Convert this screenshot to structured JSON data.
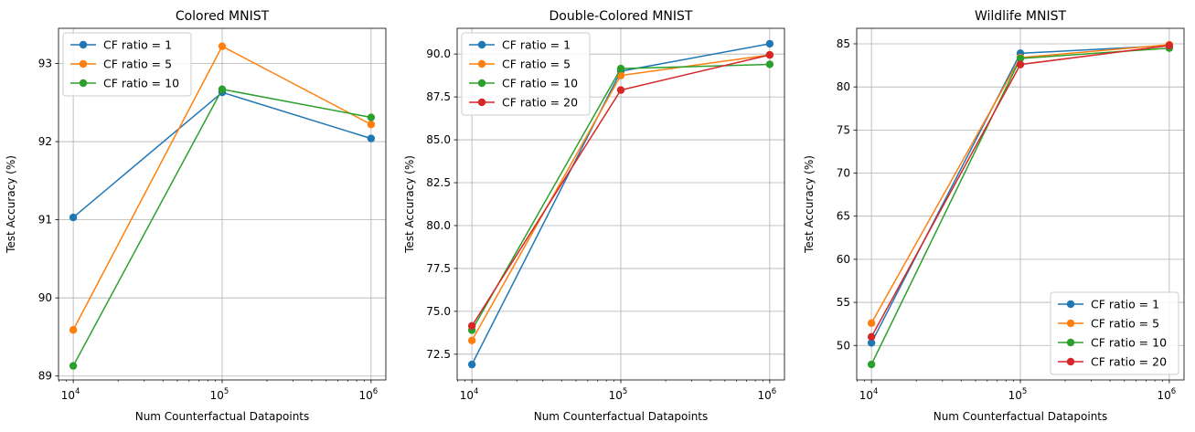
{
  "chart_data": [
    {
      "type": "line",
      "title": "Colored MNIST",
      "xlabel": "Num Counterfactual Datapoints",
      "ylabel": "Test Accuracy (%)",
      "xscale": "log",
      "x": [
        10000,
        100000,
        1000000
      ],
      "xtick_labels": [
        {
          "base": "10",
          "exp": "4"
        },
        {
          "base": "10",
          "exp": "5"
        },
        {
          "base": "10",
          "exp": "6"
        }
      ],
      "ylim": [
        88.95,
        93.45
      ],
      "yticks": [
        89,
        90,
        91,
        92,
        93
      ],
      "ytick_labels": [
        "89",
        "90",
        "91",
        "92",
        "93"
      ],
      "grid": true,
      "legend": "upper-left",
      "series": [
        {
          "name": "CF ratio = 1",
          "color": "#1f77b4",
          "values": [
            91.03,
            92.63,
            92.04
          ]
        },
        {
          "name": "CF ratio = 5",
          "color": "#ff7f0e",
          "values": [
            89.59,
            93.22,
            92.22
          ]
        },
        {
          "name": "CF ratio = 10",
          "color": "#2ca02c",
          "values": [
            89.13,
            92.67,
            92.31
          ]
        }
      ]
    },
    {
      "type": "line",
      "title": "Double-Colored MNIST",
      "xlabel": "Num Counterfactual Datapoints",
      "ylabel": "Test Accuracy (%)",
      "xscale": "log",
      "x": [
        10000,
        100000,
        1000000
      ],
      "xtick_labels": [
        {
          "base": "10",
          "exp": "4"
        },
        {
          "base": "10",
          "exp": "5"
        },
        {
          "base": "10",
          "exp": "6"
        }
      ],
      "ylim": [
        71.0,
        91.5
      ],
      "yticks": [
        72.5,
        75.0,
        77.5,
        80.0,
        82.5,
        85.0,
        87.5,
        90.0
      ],
      "ytick_labels": [
        "72.5",
        "75.0",
        "77.5",
        "80.0",
        "82.5",
        "85.0",
        "87.5",
        "90.0"
      ],
      "grid": true,
      "legend": "upper-left",
      "series": [
        {
          "name": "CF ratio = 1",
          "color": "#1f77b4",
          "values": [
            71.9,
            89.0,
            90.6
          ]
        },
        {
          "name": "CF ratio = 5",
          "color": "#ff7f0e",
          "values": [
            73.3,
            88.75,
            89.95
          ]
        },
        {
          "name": "CF ratio = 10",
          "color": "#2ca02c",
          "values": [
            73.9,
            89.15,
            89.4
          ]
        },
        {
          "name": "CF ratio = 20",
          "color": "#d62728",
          "values": [
            74.15,
            87.9,
            89.95
          ]
        }
      ]
    },
    {
      "type": "line",
      "title": "Wildlife MNIST",
      "xlabel": "Num Counterfactual Datapoints",
      "ylabel": "Test Accuracy (%)",
      "xscale": "log",
      "x": [
        10000,
        100000,
        1000000
      ],
      "xtick_labels": [
        {
          "base": "10",
          "exp": "4"
        },
        {
          "base": "10",
          "exp": "5"
        },
        {
          "base": "10",
          "exp": "6"
        }
      ],
      "ylim": [
        46.0,
        86.8
      ],
      "yticks": [
        50,
        55,
        60,
        65,
        70,
        75,
        80,
        85
      ],
      "ytick_labels": [
        "50",
        "55",
        "60",
        "65",
        "70",
        "75",
        "80",
        "85"
      ],
      "grid": true,
      "legend": "lower-right",
      "series": [
        {
          "name": "CF ratio = 1",
          "color": "#1f77b4",
          "values": [
            50.3,
            83.9,
            84.8
          ]
        },
        {
          "name": "CF ratio = 5",
          "color": "#ff7f0e",
          "values": [
            52.6,
            83.4,
            84.9
          ]
        },
        {
          "name": "CF ratio = 10",
          "color": "#2ca02c",
          "values": [
            47.8,
            83.3,
            84.5
          ]
        },
        {
          "name": "CF ratio = 20",
          "color": "#d62728",
          "values": [
            51.0,
            82.6,
            84.8
          ]
        }
      ]
    }
  ]
}
